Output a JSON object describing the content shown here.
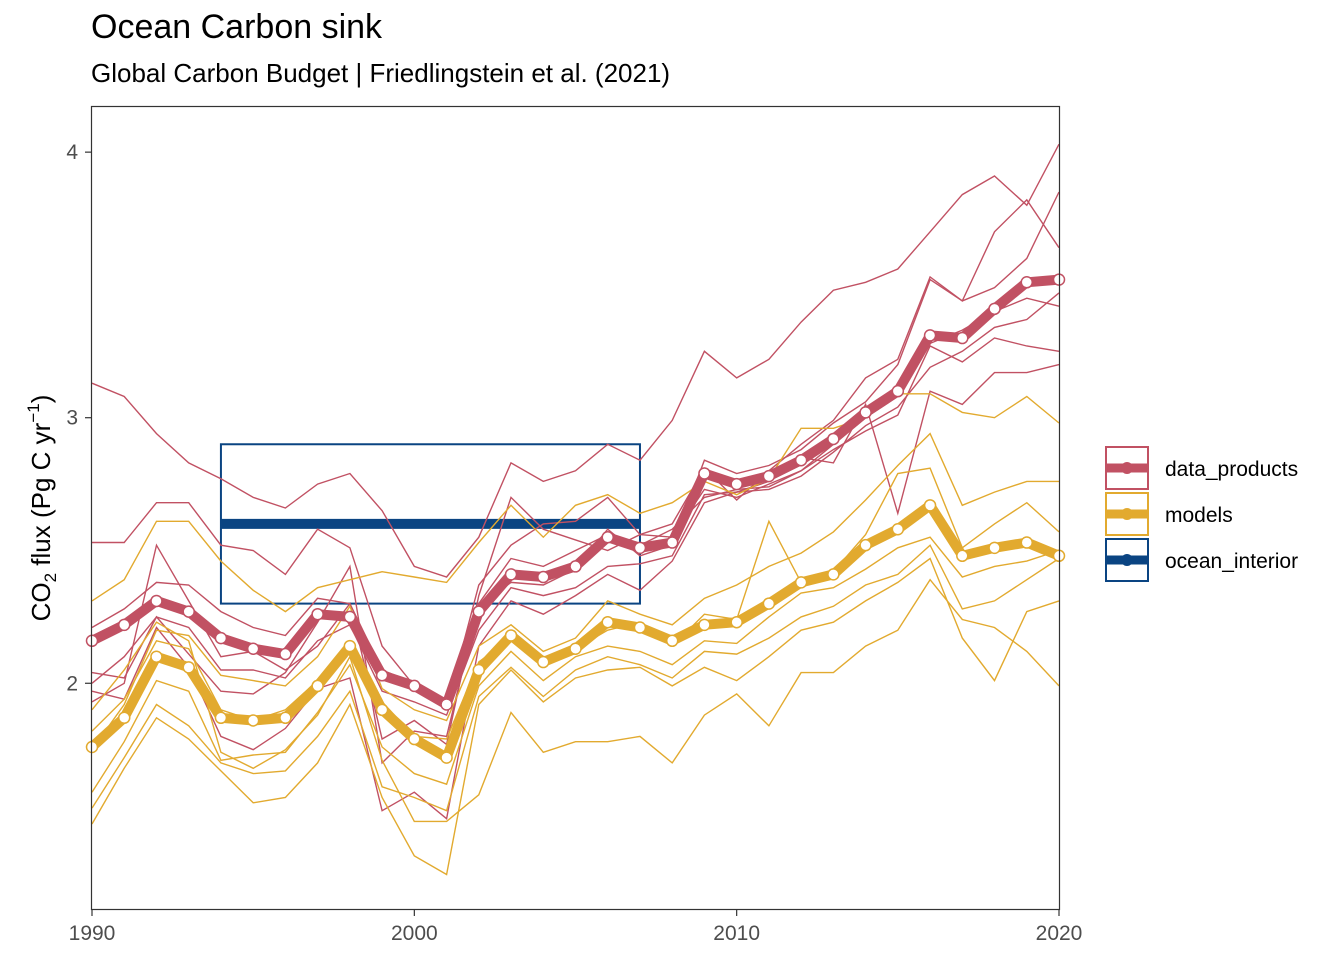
{
  "header": {
    "title": "Ocean Carbon sink",
    "subtitle": "Global Carbon Budget | Friedlingstein et al. (2021)"
  },
  "chart_data": {
    "type": "line",
    "title": "Ocean Carbon sink",
    "subtitle": "Global Carbon Budget | Friedlingstein et al. (2021)",
    "xlabel": "",
    "ylabel": "CO2 flux (Pg C yr-1)",
    "xlim": [
      1990,
      2020
    ],
    "ylim": [
      1.15,
      4.17
    ],
    "x_ticks": [
      1990,
      2000,
      2010,
      2020
    ],
    "y_ticks": [
      2,
      3,
      4
    ],
    "grid": false,
    "legend_position": "right",
    "colors": {
      "data_products": "#c15163",
      "models": "#e2aa2f",
      "ocean_interior": "#0a4482"
    },
    "x": [
      1990,
      1991,
      1992,
      1993,
      1994,
      1995,
      1996,
      1997,
      1998,
      1999,
      2000,
      2001,
      2002,
      2003,
      2004,
      2005,
      2006,
      2007,
      2008,
      2009,
      2010,
      2011,
      2012,
      2013,
      2014,
      2015,
      2016,
      2017,
      2018,
      2019,
      2020
    ],
    "legend": [
      "data_products",
      "models",
      "ocean_interior"
    ],
    "series": [
      {
        "name": "data_products",
        "group": "data_products",
        "role": "mean",
        "values": [
          2.16,
          2.22,
          2.31,
          2.27,
          2.17,
          2.13,
          2.11,
          2.26,
          2.25,
          2.03,
          1.99,
          1.92,
          2.27,
          2.41,
          2.4,
          2.44,
          2.55,
          2.51,
          2.53,
          2.79,
          2.75,
          2.78,
          2.84,
          2.92,
          3.02,
          3.1,
          3.31,
          3.3,
          3.41,
          3.51,
          3.52
        ]
      },
      {
        "name": "models",
        "group": "models",
        "role": "mean",
        "values": [
          1.76,
          1.87,
          2.1,
          2.06,
          1.87,
          1.86,
          1.87,
          1.99,
          2.14,
          1.9,
          1.79,
          1.72,
          2.05,
          2.18,
          2.08,
          2.13,
          2.23,
          2.21,
          2.16,
          2.22,
          2.23,
          2.3,
          2.38,
          2.41,
          2.52,
          2.58,
          2.67,
          2.48,
          2.51,
          2.53,
          2.48
        ]
      },
      {
        "name": "ocean_interior",
        "group": "ocean_interior",
        "role": "band",
        "x": [
          1994,
          2007
        ],
        "value": 2.6,
        "range": [
          2.3,
          2.9
        ]
      },
      {
        "group": "data_products",
        "role": "member",
        "values": [
          3.13,
          3.08,
          2.94,
          2.83,
          2.77,
          2.7,
          2.66,
          2.75,
          2.79,
          2.65,
          2.44,
          2.4,
          2.55,
          2.83,
          2.76,
          2.8,
          2.9,
          2.84,
          2.99,
          3.25,
          3.15,
          3.22,
          3.36,
          3.48,
          3.51,
          3.56,
          3.7,
          3.84,
          3.91,
          3.8,
          4.03
        ]
      },
      {
        "group": "data_products",
        "role": "member",
        "values": [
          2.53,
          2.53,
          2.68,
          2.68,
          2.52,
          2.5,
          2.41,
          2.58,
          2.51,
          2.14,
          1.99,
          1.91,
          2.37,
          2.52,
          2.6,
          2.61,
          2.7,
          2.56,
          2.6,
          2.81,
          2.69,
          2.8,
          2.9,
          2.99,
          3.15,
          3.22,
          3.53,
          3.44,
          3.49,
          3.6,
          3.85
        ]
      },
      {
        "group": "data_products",
        "role": "member",
        "values": [
          2.21,
          2.28,
          2.38,
          2.37,
          2.27,
          2.21,
          2.18,
          2.32,
          2.3,
          2.05,
          2.0,
          1.93,
          2.29,
          2.38,
          2.37,
          2.43,
          2.58,
          2.48,
          2.52,
          2.84,
          2.79,
          2.82,
          2.88,
          2.98,
          3.06,
          3.2,
          3.52,
          3.44,
          3.7,
          3.82,
          3.64
        ]
      },
      {
        "group": "data_products",
        "role": "member",
        "values": [
          2.0,
          2.1,
          2.25,
          2.21,
          2.05,
          2.05,
          2.02,
          2.16,
          2.22,
          1.97,
          1.93,
          1.88,
          2.2,
          2.36,
          2.33,
          2.36,
          2.44,
          2.45,
          2.48,
          2.71,
          2.72,
          2.73,
          2.78,
          2.87,
          2.97,
          3.04,
          3.19,
          3.25,
          3.34,
          3.37,
          3.47
        ]
      },
      {
        "group": "data_products",
        "role": "member",
        "values": [
          1.93,
          2.0,
          2.52,
          2.31,
          2.1,
          2.12,
          2.05,
          2.14,
          2.3,
          1.79,
          1.86,
          1.77,
          2.33,
          2.7,
          2.58,
          2.54,
          2.5,
          2.56,
          2.55,
          2.73,
          2.7,
          2.75,
          2.8,
          2.9,
          3.0,
          3.08,
          3.28,
          3.33,
          3.4,
          3.45,
          3.42
        ]
      },
      {
        "group": "data_products",
        "role": "member",
        "values": [
          2.04,
          2.02,
          2.25,
          2.11,
          1.97,
          1.96,
          2.04,
          2.23,
          2.44,
          1.7,
          1.82,
          1.8,
          2.3,
          2.47,
          2.44,
          2.5,
          2.56,
          2.52,
          2.58,
          2.7,
          2.73,
          2.74,
          2.8,
          2.88,
          2.95,
          3.01,
          3.27,
          3.21,
          3.3,
          3.27,
          3.25
        ]
      },
      {
        "group": "data_products",
        "role": "member",
        "values": [
          1.97,
          1.94,
          2.21,
          2.06,
          1.8,
          1.75,
          1.83,
          1.98,
          2.02,
          1.52,
          1.59,
          1.49,
          2.14,
          2.31,
          2.26,
          2.33,
          2.41,
          2.35,
          2.46,
          2.68,
          2.72,
          2.76,
          2.85,
          2.83,
          3.05,
          2.64,
          3.1,
          3.05,
          3.17,
          3.17,
          3.2
        ]
      },
      {
        "group": "models",
        "role": "member",
        "values": [
          2.31,
          2.39,
          2.61,
          2.61,
          2.46,
          2.35,
          2.27,
          2.36,
          2.39,
          2.42,
          2.4,
          2.38,
          2.53,
          2.67,
          2.55,
          2.67,
          2.71,
          2.64,
          2.68,
          2.76,
          2.71,
          2.77,
          2.96,
          2.96,
          3.0,
          3.09,
          3.09,
          3.02,
          3.0,
          3.08,
          2.98
        ]
      },
      {
        "group": "models",
        "role": "member",
        "values": [
          1.75,
          1.92,
          2.2,
          2.18,
          2.03,
          2.01,
          1.99,
          2.1,
          2.29,
          1.98,
          1.9,
          1.86,
          2.14,
          2.22,
          2.12,
          2.17,
          2.31,
          2.26,
          2.22,
          2.32,
          2.37,
          2.44,
          2.49,
          2.57,
          2.69,
          2.82,
          2.94,
          2.67,
          2.72,
          2.76,
          2.76
        ]
      },
      {
        "group": "models",
        "role": "member",
        "values": [
          1.82,
          1.94,
          2.16,
          2.13,
          1.9,
          1.86,
          1.9,
          2.01,
          2.13,
          1.93,
          1.8,
          1.79,
          2.08,
          2.17,
          2.08,
          2.13,
          2.2,
          2.23,
          2.14,
          2.26,
          2.24,
          2.61,
          2.38,
          2.42,
          2.56,
          2.79,
          2.81,
          2.51,
          2.6,
          2.68,
          2.57
        ]
      },
      {
        "group": "models",
        "role": "member",
        "values": [
          1.59,
          1.78,
          2.01,
          1.97,
          1.71,
          1.73,
          1.74,
          1.89,
          2.07,
          1.76,
          1.66,
          1.62,
          1.99,
          2.12,
          2.01,
          2.1,
          2.14,
          2.12,
          2.07,
          2.16,
          2.15,
          2.25,
          2.34,
          2.36,
          2.43,
          2.51,
          2.55,
          2.4,
          2.44,
          2.46,
          2.5
        ]
      },
      {
        "group": "models",
        "role": "member",
        "values": [
          1.53,
          1.72,
          1.92,
          1.84,
          1.7,
          1.66,
          1.67,
          1.8,
          1.97,
          1.61,
          1.57,
          1.52,
          1.95,
          2.06,
          1.95,
          2.05,
          2.1,
          2.07,
          2.02,
          2.12,
          2.11,
          2.17,
          2.25,
          2.29,
          2.37,
          2.41,
          2.52,
          2.28,
          2.31,
          2.39,
          2.47
        ]
      },
      {
        "group": "models",
        "role": "member",
        "values": [
          1.47,
          1.68,
          1.87,
          1.79,
          1.67,
          1.55,
          1.57,
          1.7,
          1.92,
          1.57,
          1.35,
          1.28,
          1.92,
          2.05,
          1.93,
          2.02,
          2.05,
          2.06,
          1.99,
          2.06,
          2.01,
          2.1,
          2.2,
          2.23,
          2.31,
          2.38,
          2.47,
          2.17,
          2.01,
          2.27,
          2.31
        ]
      },
      {
        "group": "models",
        "role": "member",
        "values": [
          1.9,
          2.05,
          2.23,
          2.16,
          1.74,
          1.68,
          1.75,
          1.88,
          2.1,
          1.71,
          1.48,
          1.48,
          1.58,
          1.89,
          1.74,
          1.78,
          1.78,
          1.8,
          1.7,
          1.88,
          1.96,
          1.84,
          2.04,
          2.04,
          2.14,
          2.2,
          2.39,
          2.24,
          2.21,
          2.12,
          1.99
        ]
      }
    ]
  }
}
